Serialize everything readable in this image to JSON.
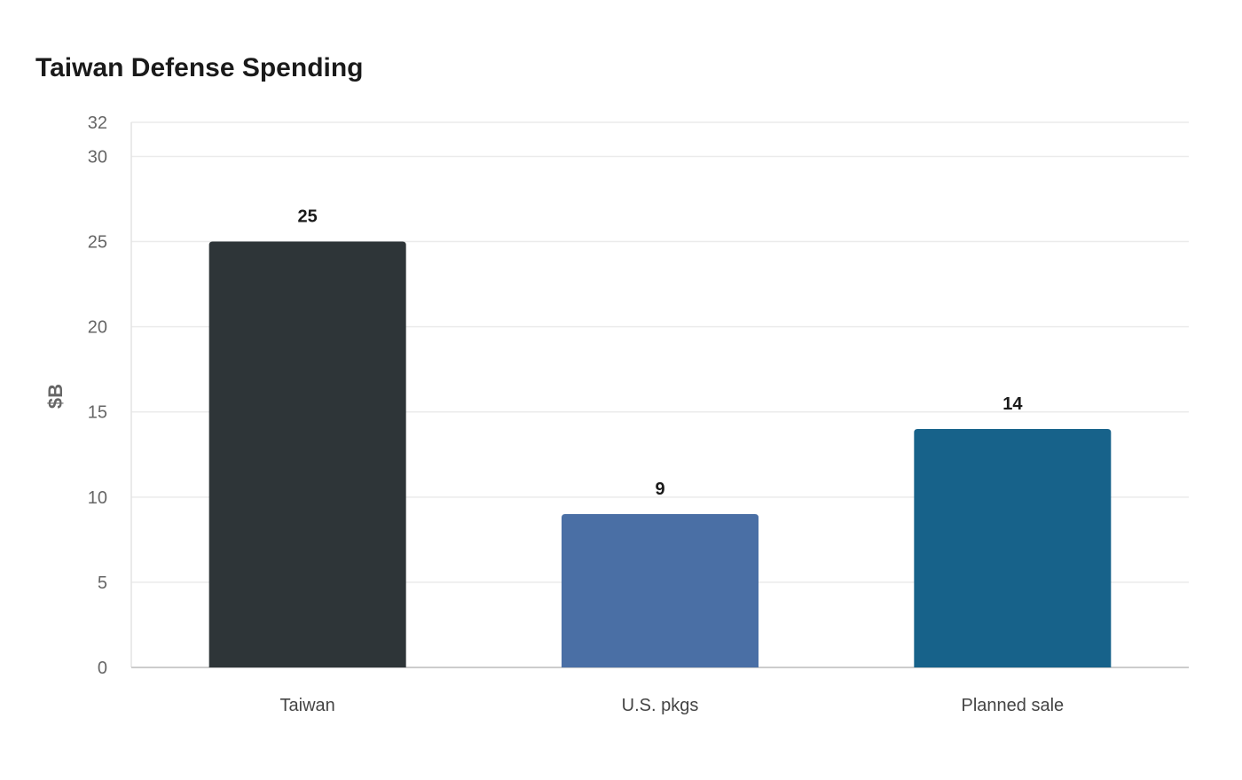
{
  "chart_data": {
    "type": "bar",
    "title": "Taiwan Defense Spending",
    "xlabel": "",
    "ylabel": "$B",
    "categories": [
      "Taiwan",
      "U.S. pkgs",
      "Planned sale"
    ],
    "values": [
      25,
      9,
      14
    ],
    "data_labels": [
      "25",
      "9",
      "14"
    ],
    "colors": [
      "#2e3538",
      "#4a6fa5",
      "#17628a"
    ],
    "ylim": [
      0,
      32
    ],
    "yticks": [
      0,
      5,
      10,
      15,
      20,
      25,
      30,
      32
    ],
    "grid": true,
    "legend": "none"
  }
}
